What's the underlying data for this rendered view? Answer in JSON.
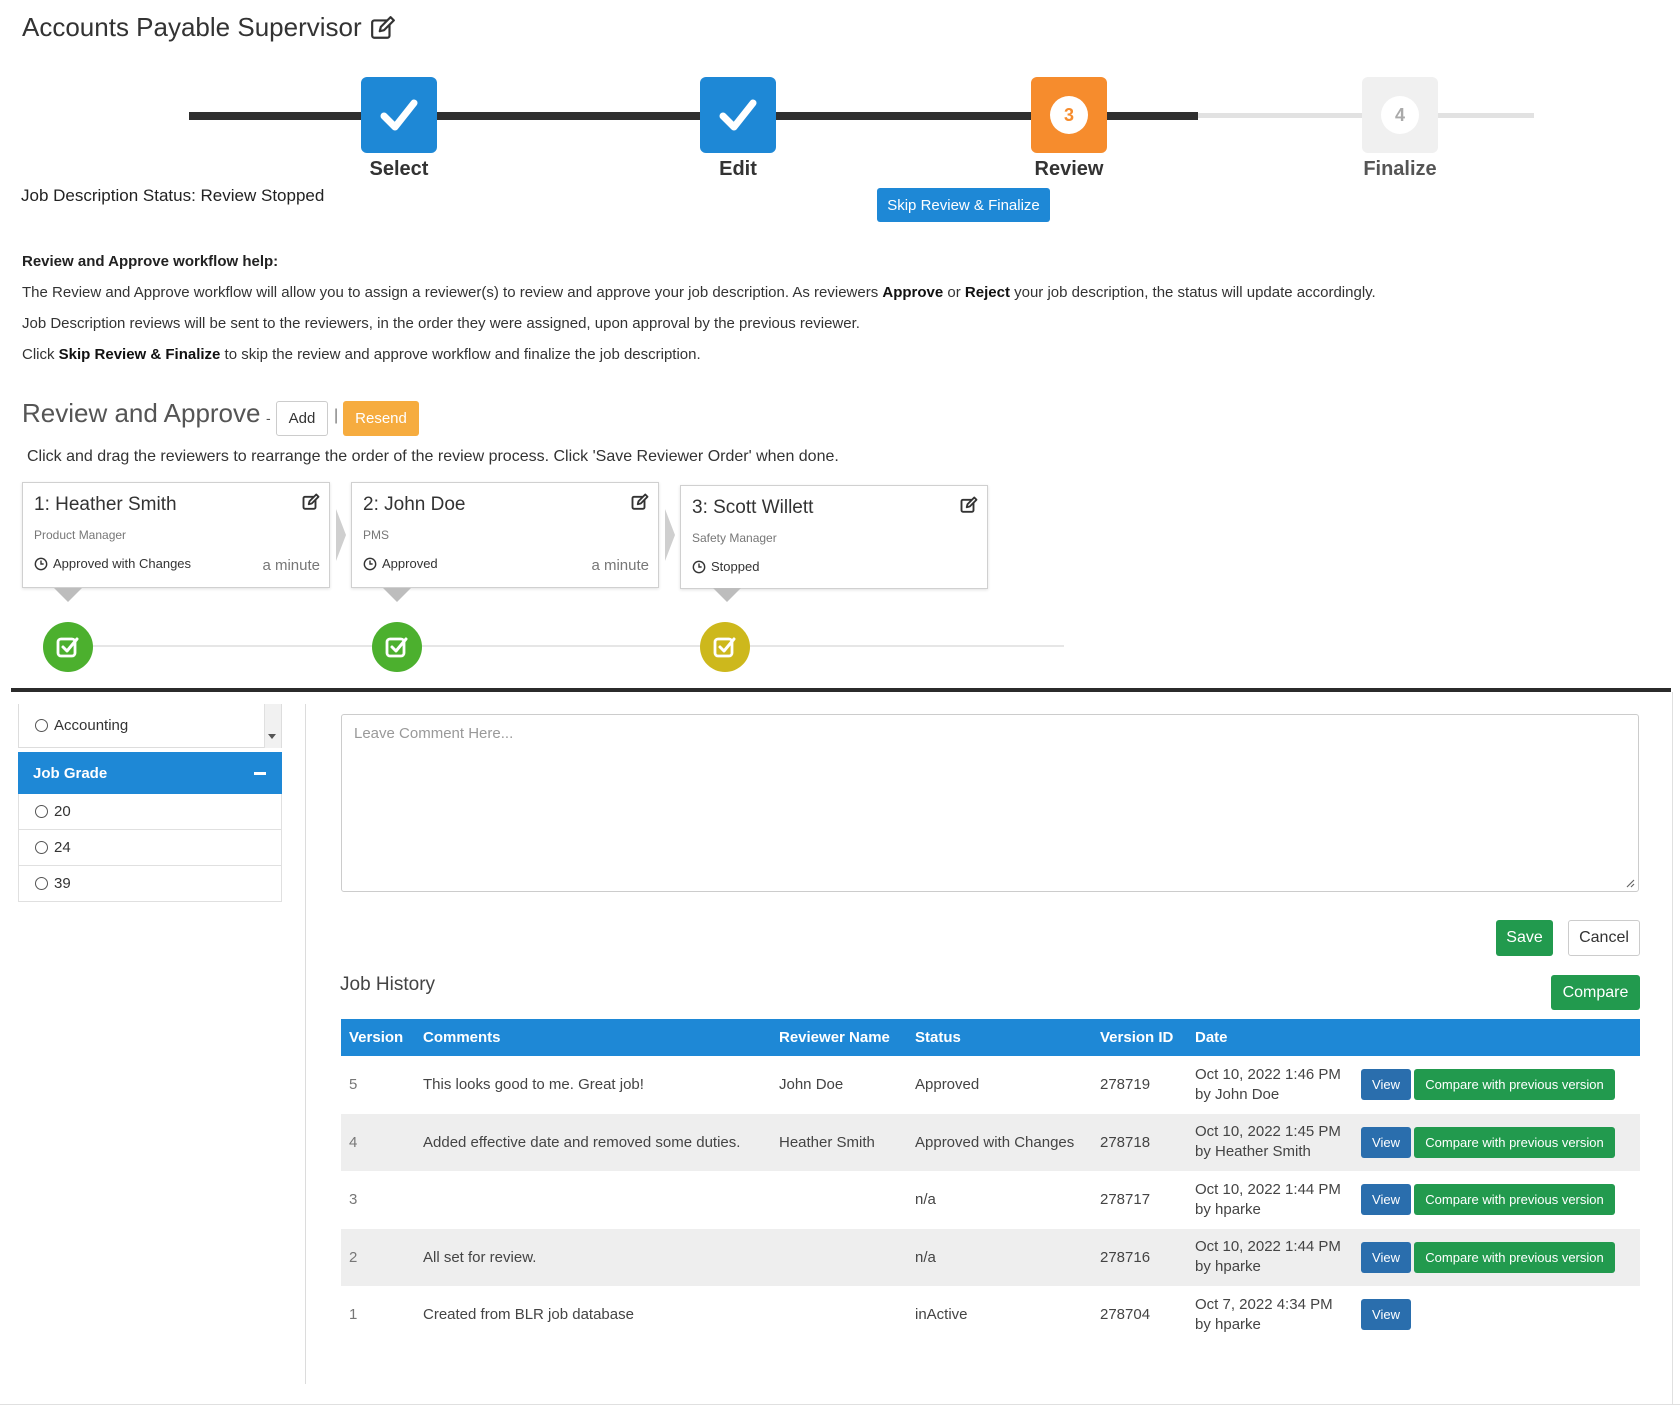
{
  "header": {
    "title": "Accounts Payable Supervisor"
  },
  "stepper": {
    "steps": [
      {
        "label": "Select",
        "state": "done"
      },
      {
        "label": "Edit",
        "state": "done"
      },
      {
        "label": "Review",
        "state": "active",
        "number": "3"
      },
      {
        "label": "Finalize",
        "state": "future",
        "number": "4"
      }
    ],
    "status_text": "Job Description Status: Review Stopped",
    "skip_label": "Skip Review & Finalize"
  },
  "help": {
    "title": "Review and Approve workflow help:",
    "line1_a": "The Review and Approve workflow will allow you to assign a reviewer(s) to review and approve your job description. As reviewers ",
    "line1_b": "Approve",
    "line1_c": " or ",
    "line1_d": "Reject",
    "line1_e": " your job description, the status will update accordingly.",
    "line2": "Job Description reviews will be sent to the reviewers, in the order they were assigned, upon approval by the previous reviewer.",
    "line3_a": "Click ",
    "line3_b": "Skip Review & Finalize",
    "line3_c": " to skip the review and approve workflow and finalize the job description."
  },
  "review": {
    "title": "Review and Approve",
    "dash": "-",
    "add_label": "Add",
    "separator": "|",
    "resend_label": "Resend",
    "hint": "Click and drag the reviewers to rearrange the order of the review process. Click 'Save Reviewer Order' when done.",
    "reviewers": [
      {
        "name": "1: Heather Smith",
        "role": "Product Manager",
        "status": "Approved with Changes",
        "time": "a minute",
        "indicator": "green"
      },
      {
        "name": "2: John Doe",
        "role": "PMS",
        "status": "Approved",
        "time": "a minute",
        "indicator": "green"
      },
      {
        "name": "3: Scott Willett",
        "role": "Safety Manager",
        "status": "Stopped",
        "time": "",
        "indicator": "yellow"
      }
    ]
  },
  "filters": {
    "department_item": "Accounting",
    "job_grade_header": "Job Grade",
    "job_grades": [
      "20",
      "24",
      "39"
    ]
  },
  "comment": {
    "placeholder": "Leave Comment Here...",
    "save_label": "Save",
    "cancel_label": "Cancel"
  },
  "history": {
    "title": "Job History",
    "compare_label": "Compare",
    "columns": [
      "Version",
      "Comments",
      "Reviewer Name",
      "Status",
      "Version ID",
      "Date"
    ],
    "view_label": "View",
    "compare_prev_label": "Compare with previous version",
    "rows": [
      {
        "version": "5",
        "comments": "This looks good to me. Great job!",
        "reviewer": "John Doe",
        "status": "Approved",
        "version_id": "278719",
        "date": "Oct 10, 2022 1:46 PM",
        "by": "by John Doe"
      },
      {
        "version": "4",
        "comments": "Added effective date and removed some duties.",
        "reviewer": "Heather Smith",
        "status": "Approved with Changes",
        "version_id": "278718",
        "date": "Oct 10, 2022 1:45 PM",
        "by": "by Heather Smith"
      },
      {
        "version": "3",
        "comments": "",
        "reviewer": "",
        "status": "n/a",
        "version_id": "278717",
        "date": "Oct 10, 2022 1:44 PM",
        "by": "by hparke"
      },
      {
        "version": "2",
        "comments": "All set for review.",
        "reviewer": "",
        "status": "n/a",
        "version_id": "278716",
        "date": "Oct 10, 2022 1:44 PM",
        "by": "by hparke"
      },
      {
        "version": "1",
        "comments": "Created from BLR job database",
        "reviewer": "",
        "status": "inActive",
        "version_id": "278704",
        "date": "Oct 7, 2022 4:34 PM",
        "by": "by hparke"
      }
    ]
  }
}
